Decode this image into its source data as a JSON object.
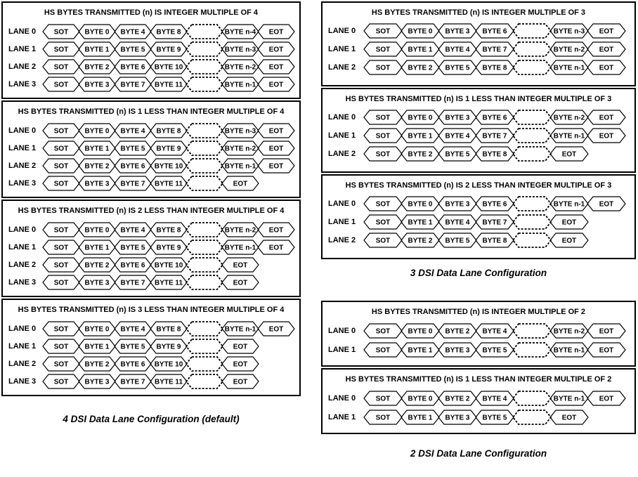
{
  "colors": {
    "ink": "#000000",
    "paper": "#ffffff"
  },
  "groups": [
    {
      "id": "4-lane",
      "caption": "4 DSI Data Lane Configuration (default)",
      "panels": [
        {
          "title": "HS BYTES TRANSMITTED (n) IS INTEGER MULTIPLE OF 4",
          "lanes": [
            {
              "label": "LANE 0",
              "cells": [
                "SOT",
                "BYTE 0",
                "BYTE 4",
                "BYTE 8",
                "",
                "BYTE n-4",
                "EOT"
              ]
            },
            {
              "label": "LANE 1",
              "cells": [
                "SOT",
                "BYTE 1",
                "BYTE 5",
                "BYTE 9",
                "",
                "BYTE n-3",
                "EOT"
              ]
            },
            {
              "label": "LANE 2",
              "cells": [
                "SOT",
                "BYTE 2",
                "BYTE 6",
                "BYTE 10",
                "",
                "BYTE n-2",
                "EOT"
              ]
            },
            {
              "label": "LANE 3",
              "cells": [
                "SOT",
                "BYTE 3",
                "BYTE 7",
                "BYTE 11",
                "",
                "BYTE n-1",
                "EOT"
              ]
            }
          ]
        },
        {
          "title": "HS BYTES TRANSMITTED (n) IS 1 LESS THAN INTEGER MULTIPLE OF 4",
          "lanes": [
            {
              "label": "LANE 0",
              "cells": [
                "SOT",
                "BYTE 0",
                "BYTE 4",
                "BYTE 8",
                "",
                "BYTE n-3",
                "EOT"
              ]
            },
            {
              "label": "LANE 1",
              "cells": [
                "SOT",
                "BYTE 1",
                "BYTE 5",
                "BYTE 9",
                "",
                "BYTE n-2",
                "EOT"
              ]
            },
            {
              "label": "LANE 2",
              "cells": [
                "SOT",
                "BYTE 2",
                "BYTE 6",
                "BYTE 10",
                "",
                "BYTE n-1",
                "EOT"
              ]
            },
            {
              "label": "LANE 3",
              "cells": [
                "SOT",
                "BYTE 3",
                "BYTE 7",
                "BYTE 11",
                "",
                "EOT"
              ]
            }
          ]
        },
        {
          "title": "HS BYTES TRANSMITTED (n) IS 2 LESS THAN INTEGER MULTIPLE OF 4",
          "lanes": [
            {
              "label": "LANE 0",
              "cells": [
                "SOT",
                "BYTE 0",
                "BYTE 4",
                "BYTE 8",
                "",
                "BYTE n-2",
                "EOT"
              ]
            },
            {
              "label": "LANE 1",
              "cells": [
                "SOT",
                "BYTE 1",
                "BYTE 5",
                "BYTE 9",
                "",
                "BYTE n-1",
                "EOT"
              ]
            },
            {
              "label": "LANE 2",
              "cells": [
                "SOT",
                "BYTE 2",
                "BYTE 6",
                "BYTE 10",
                "",
                "EOT"
              ]
            },
            {
              "label": "LANE 3",
              "cells": [
                "SOT",
                "BYTE 3",
                "BYTE 7",
                "BYTE 11",
                "",
                "EOT"
              ]
            }
          ]
        },
        {
          "title": "HS BYTES TRANSMITTED (n) IS 3 LESS THAN INTEGER MULTIPLE OF 4",
          "lanes": [
            {
              "label": "LANE 0",
              "cells": [
                "SOT",
                "BYTE 0",
                "BYTE 4",
                "BYTE 8",
                "",
                "BYTE n-1",
                "EOT"
              ]
            },
            {
              "label": "LANE 1",
              "cells": [
                "SOT",
                "BYTE 1",
                "BYTE 5",
                "BYTE 9",
                "",
                "EOT"
              ]
            },
            {
              "label": "LANE 2",
              "cells": [
                "SOT",
                "BYTE 2",
                "BYTE 6",
                "BYTE 10",
                "",
                "EOT"
              ]
            },
            {
              "label": "LANE 3",
              "cells": [
                "SOT",
                "BYTE 3",
                "BYTE 7",
                "BYTE 11",
                "",
                "EOT"
              ]
            }
          ]
        }
      ]
    },
    {
      "id": "3-lane",
      "caption": "3 DSI Data Lane Configuration",
      "panels": [
        {
          "title": "HS BYTES TRANSMITTED (n) IS INTEGER MULTIPLE OF 3",
          "lanes": [
            {
              "label": "LANE 0",
              "cells": [
                "SOT",
                "BYTE 0",
                "BYTE 3",
                "BYTE 6",
                "",
                "BYTE n-3",
                "EOT"
              ]
            },
            {
              "label": "LANE 1",
              "cells": [
                "SOT",
                "BYTE 1",
                "BYTE 4",
                "BYTE 7",
                "",
                "BYTE n-2",
                "EOT"
              ]
            },
            {
              "label": "LANE 2",
              "cells": [
                "SOT",
                "BYTE 2",
                "BYTE 5",
                "BYTE 8",
                "",
                "BYTE n-1",
                "EOT"
              ]
            }
          ]
        },
        {
          "title": "HS BYTES TRANSMITTED (n) IS 1 LESS THAN INTEGER MULTIPLE OF 3",
          "lanes": [
            {
              "label": "LANE 0",
              "cells": [
                "SOT",
                "BYTE 0",
                "BYTE 3",
                "BYTE 6",
                "",
                "BYTE n-2",
                "EOT"
              ]
            },
            {
              "label": "LANE 1",
              "cells": [
                "SOT",
                "BYTE 1",
                "BYTE 4",
                "BYTE 7",
                "",
                "BYTE n-1",
                "EOT"
              ]
            },
            {
              "label": "LANE 2",
              "cells": [
                "SOT",
                "BYTE 2",
                "BYTE 5",
                "BYTE 8",
                "",
                "EOT"
              ]
            }
          ]
        },
        {
          "title": "HS BYTES TRANSMITTED (n) IS 2 LESS THAN INTEGER MULTIPLE OF 3",
          "lanes": [
            {
              "label": "LANE 0",
              "cells": [
                "SOT",
                "BYTE 0",
                "BYTE 3",
                "BYTE 6",
                "",
                "BYTE n-1",
                "EOT"
              ]
            },
            {
              "label": "LANE 1",
              "cells": [
                "SOT",
                "BYTE 1",
                "BYTE 4",
                "BYTE 7",
                "",
                "EOT"
              ]
            },
            {
              "label": "LANE 2",
              "cells": [
                "SOT",
                "BYTE 2",
                "BYTE 5",
                "BYTE 8",
                "",
                "EOT"
              ]
            }
          ]
        }
      ]
    },
    {
      "id": "2-lane",
      "caption": "2 DSI Data Lane Configuration",
      "panels": [
        {
          "title": "HS BYTES TRANSMITTED (n) IS INTEGER MULTIPLE OF 2",
          "lanes": [
            {
              "label": "LANE 0",
              "cells": [
                "SOT",
                "BYTE 0",
                "BYTE 2",
                "BYTE 4",
                "",
                "BYTE n-2",
                "EOT"
              ]
            },
            {
              "label": "LANE 1",
              "cells": [
                "SOT",
                "BYTE 1",
                "BYTE 3",
                "BYTE 5",
                "",
                "BYTE n-1",
                "EOT"
              ]
            }
          ]
        },
        {
          "title": "HS BYTES TRANSMITTED (n) IS 1 LESS THAN INTEGER MULTIPLE OF 2",
          "lanes": [
            {
              "label": "LANE 0",
              "cells": [
                "SOT",
                "BYTE 0",
                "BYTE 2",
                "BYTE 4",
                "",
                "BYTE n-1",
                "EOT"
              ]
            },
            {
              "label": "LANE 1",
              "cells": [
                "SOT",
                "BYTE 1",
                "BYTE 3",
                "BYTE 5",
                "",
                "EOT"
              ]
            }
          ]
        }
      ]
    }
  ]
}
